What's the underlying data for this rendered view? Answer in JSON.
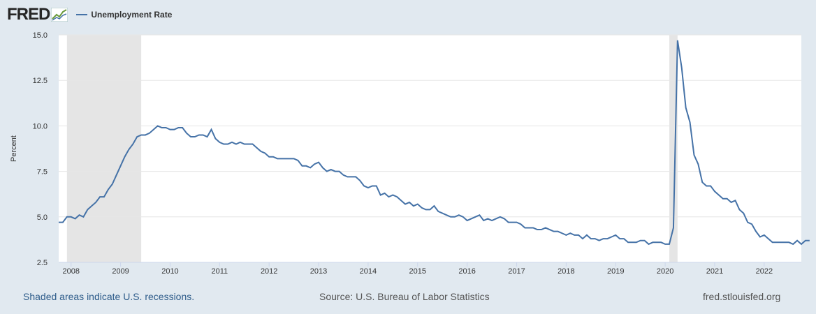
{
  "header": {
    "logo_text": "FRED",
    "logo_icon": "line-graph-icon",
    "legend_label": "Unemployment Rate"
  },
  "footer": {
    "left": "Shaded areas indicate U.S. recessions.",
    "middle": "Source: U.S. Bureau of Labor Statistics",
    "right": "fred.stlouisfed.org"
  },
  "colors": {
    "background": "#e1e9f0",
    "plot_background": "#ffffff",
    "series": "#4572a7",
    "recession": "#e5e5e5",
    "grid": "#e6e6e6",
    "link": "#2e5c8a"
  },
  "chart_data": {
    "type": "line",
    "title": "",
    "xlabel": "",
    "ylabel": "Percent",
    "ylim": [
      2.5,
      15.0
    ],
    "yticks": [
      "2.5",
      "5.0",
      "7.5",
      "10.0",
      "12.5",
      "15.0"
    ],
    "xticks": [
      "2008",
      "2009",
      "2010",
      "2011",
      "2012",
      "2013",
      "2014",
      "2015",
      "2016",
      "2017",
      "2018",
      "2019",
      "2020",
      "2021",
      "2022"
    ],
    "x_start": "2007-10",
    "x_end": "2022-10",
    "grid": true,
    "legend_position": "top-left",
    "recessions": [
      [
        "2007-12",
        "2009-06"
      ],
      [
        "2020-02",
        "2020-04"
      ]
    ],
    "series": [
      {
        "name": "Unemployment Rate",
        "x_start": "2007-10",
        "frequency": "monthly",
        "values": [
          4.7,
          4.7,
          5.0,
          5.0,
          4.9,
          5.1,
          5.0,
          5.4,
          5.6,
          5.8,
          6.1,
          6.1,
          6.5,
          6.8,
          7.3,
          7.8,
          8.3,
          8.7,
          9.0,
          9.4,
          9.5,
          9.5,
          9.6,
          9.8,
          10.0,
          9.9,
          9.9,
          9.8,
          9.8,
          9.9,
          9.9,
          9.6,
          9.4,
          9.4,
          9.5,
          9.5,
          9.4,
          9.8,
          9.3,
          9.1,
          9.0,
          9.0,
          9.1,
          9.0,
          9.1,
          9.0,
          9.0,
          9.0,
          8.8,
          8.6,
          8.5,
          8.3,
          8.3,
          8.2,
          8.2,
          8.2,
          8.2,
          8.2,
          8.1,
          7.8,
          7.8,
          7.7,
          7.9,
          8.0,
          7.7,
          7.5,
          7.6,
          7.5,
          7.5,
          7.3,
          7.2,
          7.2,
          7.2,
          7.0,
          6.7,
          6.6,
          6.7,
          6.7,
          6.2,
          6.3,
          6.1,
          6.2,
          6.1,
          5.9,
          5.7,
          5.8,
          5.6,
          5.7,
          5.5,
          5.4,
          5.4,
          5.6,
          5.3,
          5.2,
          5.1,
          5.0,
          5.0,
          5.1,
          5.0,
          4.8,
          4.9,
          5.0,
          5.1,
          4.8,
          4.9,
          4.8,
          4.9,
          5.0,
          4.9,
          4.7,
          4.7,
          4.7,
          4.6,
          4.4,
          4.4,
          4.4,
          4.3,
          4.3,
          4.4,
          4.3,
          4.2,
          4.2,
          4.1,
          4.0,
          4.1,
          4.0,
          4.0,
          3.8,
          4.0,
          3.8,
          3.8,
          3.7,
          3.8,
          3.8,
          3.9,
          4.0,
          3.8,
          3.8,
          3.6,
          3.6,
          3.6,
          3.7,
          3.7,
          3.5,
          3.6,
          3.6,
          3.6,
          3.5,
          3.5,
          4.4,
          14.7,
          13.2,
          11.0,
          10.2,
          8.4,
          7.9,
          6.9,
          6.7,
          6.7,
          6.4,
          6.2,
          6.0,
          6.0,
          5.8,
          5.9,
          5.4,
          5.2,
          4.7,
          4.6,
          4.2,
          3.9,
          4.0,
          3.8,
          3.6,
          3.6,
          3.6,
          3.6,
          3.6,
          3.5,
          3.7,
          3.5,
          3.7,
          3.7
        ]
      }
    ]
  }
}
